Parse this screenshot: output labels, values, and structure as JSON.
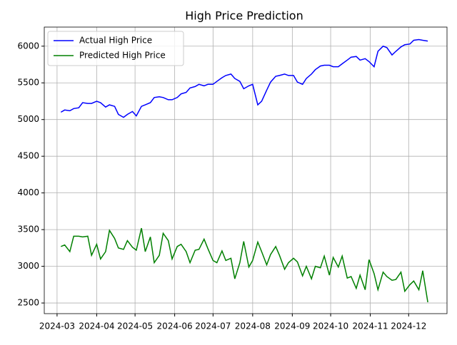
{
  "chart_data": {
    "type": "line",
    "title": "High Price Prediction",
    "x": [
      "2024-03-04",
      "2024-03-07",
      "2024-03-11",
      "2024-03-14",
      "2024-03-18",
      "2024-03-21",
      "2024-03-25",
      "2024-03-28",
      "2024-04-01",
      "2024-04-04",
      "2024-04-08",
      "2024-04-11",
      "2024-04-15",
      "2024-04-18",
      "2024-04-22",
      "2024-04-25",
      "2024-04-29",
      "2024-05-02",
      "2024-05-06",
      "2024-05-09",
      "2024-05-13",
      "2024-05-16",
      "2024-05-20",
      "2024-05-23",
      "2024-05-27",
      "2024-05-30",
      "2024-06-03",
      "2024-06-06",
      "2024-06-10",
      "2024-06-13",
      "2024-06-17",
      "2024-06-20",
      "2024-06-24",
      "2024-06-27",
      "2024-07-01",
      "2024-07-04",
      "2024-07-08",
      "2024-07-11",
      "2024-07-15",
      "2024-07-18",
      "2024-07-22",
      "2024-07-25",
      "2024-07-29",
      "2024-08-01",
      "2024-08-05",
      "2024-08-08",
      "2024-08-12",
      "2024-08-15",
      "2024-08-19",
      "2024-08-22",
      "2024-08-26",
      "2024-08-29",
      "2024-09-02",
      "2024-09-05",
      "2024-09-09",
      "2024-09-12",
      "2024-09-16",
      "2024-09-19",
      "2024-09-23",
      "2024-09-26",
      "2024-09-30",
      "2024-10-03",
      "2024-10-07",
      "2024-10-10",
      "2024-10-14",
      "2024-10-17",
      "2024-10-21",
      "2024-10-24",
      "2024-10-28",
      "2024-10-31",
      "2024-11-04",
      "2024-11-07",
      "2024-11-11",
      "2024-11-14",
      "2024-11-18",
      "2024-11-21",
      "2024-11-25",
      "2024-11-28",
      "2024-12-02",
      "2024-12-05",
      "2024-12-09",
      "2024-12-12",
      "2024-12-16"
    ],
    "series": [
      {
        "name": "Actual High Price",
        "color": "#0000ff",
        "values": [
          5100,
          5130,
          5120,
          5150,
          5160,
          5230,
          5220,
          5220,
          5250,
          5230,
          5170,
          5200,
          5180,
          5070,
          5030,
          5070,
          5110,
          5050,
          5180,
          5200,
          5230,
          5300,
          5310,
          5300,
          5270,
          5270,
          5300,
          5350,
          5370,
          5430,
          5450,
          5480,
          5460,
          5480,
          5480,
          5520,
          5570,
          5600,
          5620,
          5560,
          5520,
          5420,
          5460,
          5480,
          5200,
          5250,
          5400,
          5510,
          5590,
          5600,
          5620,
          5600,
          5600,
          5510,
          5480,
          5560,
          5620,
          5680,
          5730,
          5740,
          5740,
          5720,
          5720,
          5760,
          5810,
          5850,
          5860,
          5810,
          5830,
          5790,
          5720,
          5930,
          6000,
          5980,
          5880,
          5930,
          5990,
          6020,
          6030,
          6080,
          6090,
          6080,
          6070
        ]
      },
      {
        "name": "Predicted High Price",
        "color": "#008000",
        "values": [
          3270,
          3290,
          3200,
          3410,
          3410,
          3400,
          3410,
          3150,
          3300,
          3100,
          3200,
          3490,
          3380,
          3250,
          3230,
          3350,
          3260,
          3220,
          3520,
          3200,
          3400,
          3050,
          3150,
          3450,
          3350,
          3100,
          3270,
          3300,
          3200,
          3050,
          3220,
          3230,
          3370,
          3240,
          3080,
          3050,
          3210,
          3080,
          3110,
          2830,
          3050,
          3340,
          2990,
          3080,
          3330,
          3200,
          3020,
          3160,
          3270,
          3150,
          2960,
          3050,
          3110,
          3060,
          2870,
          3000,
          2830,
          3000,
          2980,
          3140,
          2880,
          3120,
          2990,
          3140,
          2840,
          2860,
          2700,
          2880,
          2680,
          3090,
          2900,
          2680,
          2920,
          2860,
          2810,
          2820,
          2920,
          2660,
          2750,
          2800,
          2680,
          2940,
          2510
        ]
      }
    ],
    "xlim": [
      "2024-02-20",
      "2024-12-31"
    ],
    "xticks": [
      {
        "value": "2024-03-01",
        "label": "2024-03"
      },
      {
        "value": "2024-04-01",
        "label": "2024-04"
      },
      {
        "value": "2024-05-01",
        "label": "2024-05"
      },
      {
        "value": "2024-06-01",
        "label": "2024-06"
      },
      {
        "value": "2024-07-01",
        "label": "2024-07"
      },
      {
        "value": "2024-08-01",
        "label": "2024-08"
      },
      {
        "value": "2024-09-01",
        "label": "2024-09"
      },
      {
        "value": "2024-10-01",
        "label": "2024-10"
      },
      {
        "value": "2024-11-01",
        "label": "2024-11"
      },
      {
        "value": "2024-12-01",
        "label": "2024-12"
      }
    ],
    "ylim": [
      2355,
      6260
    ],
    "yticks": [
      2500,
      3000,
      3500,
      4000,
      4500,
      5000,
      5500,
      6000
    ],
    "grid": true,
    "legend": "upper left"
  }
}
